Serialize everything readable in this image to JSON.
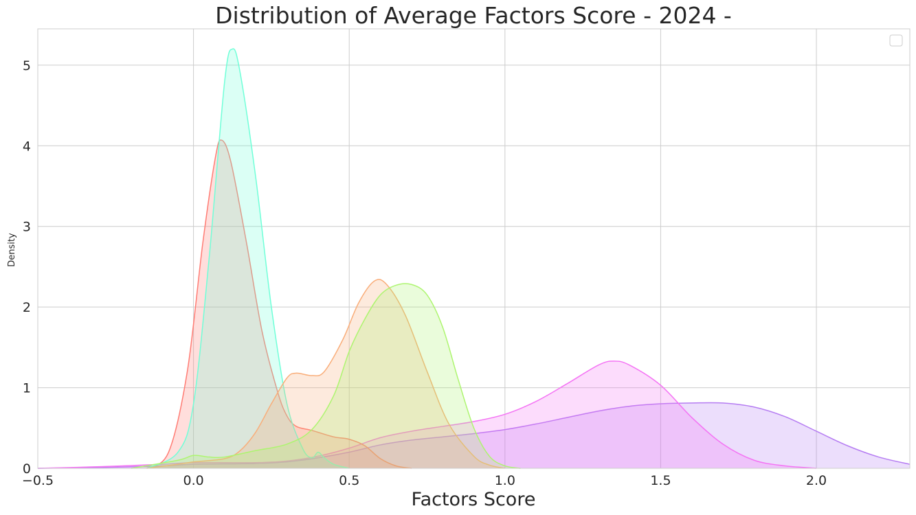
{
  "chart_data": {
    "type": "area",
    "title": "Distribution of Average Factors Score - 2024 -",
    "xlabel": "Factors Score",
    "ylabel": "Density",
    "xlim": [
      -0.5,
      2.3
    ],
    "ylim": [
      0,
      5.45
    ],
    "xticks": [
      -0.5,
      0.0,
      0.5,
      1.0,
      1.5,
      2.0
    ],
    "xtick_labels": [
      "−0.5",
      "0.0",
      "0.5",
      "1.0",
      "1.5",
      "2.0"
    ],
    "yticks": [
      0,
      1,
      2,
      3,
      4,
      5
    ],
    "ytick_labels": [
      "0",
      "1",
      "2",
      "3",
      "4",
      "5"
    ],
    "grid": true,
    "legend": {
      "placement": "top-right",
      "entries": []
    },
    "series": [
      {
        "color": "#b57cf2",
        "points": [
          [
            -0.5,
            0.0
          ],
          [
            -0.3,
            0.01
          ],
          [
            -0.1,
            0.03
          ],
          [
            0.0,
            0.05
          ],
          [
            0.2,
            0.06
          ],
          [
            0.3,
            0.08
          ],
          [
            0.4,
            0.13
          ],
          [
            0.5,
            0.2
          ],
          [
            0.6,
            0.29
          ],
          [
            0.7,
            0.35
          ],
          [
            0.8,
            0.39
          ],
          [
            0.9,
            0.43
          ],
          [
            1.0,
            0.48
          ],
          [
            1.1,
            0.55
          ],
          [
            1.2,
            0.63
          ],
          [
            1.3,
            0.71
          ],
          [
            1.4,
            0.77
          ],
          [
            1.5,
            0.8
          ],
          [
            1.6,
            0.81
          ],
          [
            1.7,
            0.81
          ],
          [
            1.8,
            0.76
          ],
          [
            1.9,
            0.64
          ],
          [
            2.0,
            0.46
          ],
          [
            2.1,
            0.28
          ],
          [
            2.2,
            0.14
          ],
          [
            2.3,
            0.05
          ]
        ]
      },
      {
        "color": "#f472f4",
        "points": [
          [
            -0.5,
            0.0
          ],
          [
            -0.3,
            0.02
          ],
          [
            -0.1,
            0.05
          ],
          [
            0.0,
            0.07
          ],
          [
            0.2,
            0.07
          ],
          [
            0.3,
            0.09
          ],
          [
            0.4,
            0.15
          ],
          [
            0.5,
            0.25
          ],
          [
            0.6,
            0.38
          ],
          [
            0.7,
            0.46
          ],
          [
            0.8,
            0.52
          ],
          [
            0.9,
            0.58
          ],
          [
            1.0,
            0.67
          ],
          [
            1.1,
            0.83
          ],
          [
            1.2,
            1.05
          ],
          [
            1.3,
            1.28
          ],
          [
            1.35,
            1.33
          ],
          [
            1.4,
            1.28
          ],
          [
            1.5,
            1.03
          ],
          [
            1.6,
            0.63
          ],
          [
            1.7,
            0.3
          ],
          [
            1.8,
            0.1
          ],
          [
            1.9,
            0.03
          ],
          [
            2.0,
            0.0
          ]
        ]
      },
      {
        "color": "#ff7b73",
        "points": [
          [
            -0.15,
            0.0
          ],
          [
            -0.08,
            0.2
          ],
          [
            -0.02,
            1.2
          ],
          [
            0.03,
            2.8
          ],
          [
            0.07,
            3.85
          ],
          [
            0.09,
            4.07
          ],
          [
            0.12,
            3.8
          ],
          [
            0.17,
            2.8
          ],
          [
            0.22,
            1.7
          ],
          [
            0.27,
            0.95
          ],
          [
            0.3,
            0.65
          ],
          [
            0.33,
            0.52
          ],
          [
            0.38,
            0.47
          ],
          [
            0.45,
            0.39
          ],
          [
            0.5,
            0.36
          ],
          [
            0.55,
            0.28
          ],
          [
            0.6,
            0.12
          ],
          [
            0.65,
            0.03
          ],
          [
            0.7,
            0.0
          ]
        ]
      },
      {
        "color": "#70ffd8",
        "points": [
          [
            -0.15,
            0.0
          ],
          [
            -0.05,
            0.2
          ],
          [
            0.0,
            0.8
          ],
          [
            0.05,
            2.6
          ],
          [
            0.1,
            4.8
          ],
          [
            0.125,
            5.2
          ],
          [
            0.15,
            4.9
          ],
          [
            0.2,
            3.6
          ],
          [
            0.25,
            2.0
          ],
          [
            0.3,
            0.8
          ],
          [
            0.35,
            0.25
          ],
          [
            0.38,
            0.13
          ],
          [
            0.4,
            0.2
          ],
          [
            0.42,
            0.13
          ],
          [
            0.45,
            0.05
          ],
          [
            0.5,
            0.0
          ]
        ]
      },
      {
        "color": "#f9ad79",
        "points": [
          [
            -0.15,
            0.0
          ],
          [
            -0.05,
            0.05
          ],
          [
            0.0,
            0.08
          ],
          [
            0.1,
            0.12
          ],
          [
            0.15,
            0.22
          ],
          [
            0.2,
            0.45
          ],
          [
            0.25,
            0.8
          ],
          [
            0.3,
            1.12
          ],
          [
            0.33,
            1.18
          ],
          [
            0.38,
            1.15
          ],
          [
            0.42,
            1.2
          ],
          [
            0.48,
            1.6
          ],
          [
            0.53,
            2.05
          ],
          [
            0.58,
            2.32
          ],
          [
            0.62,
            2.28
          ],
          [
            0.68,
            1.9
          ],
          [
            0.75,
            1.2
          ],
          [
            0.82,
            0.55
          ],
          [
            0.9,
            0.15
          ],
          [
            0.95,
            0.04
          ],
          [
            1.0,
            0.0
          ]
        ]
      },
      {
        "color": "#adf56f",
        "points": [
          [
            -0.2,
            0.0
          ],
          [
            -0.05,
            0.1
          ],
          [
            0.0,
            0.16
          ],
          [
            0.05,
            0.14
          ],
          [
            0.1,
            0.14
          ],
          [
            0.2,
            0.22
          ],
          [
            0.3,
            0.3
          ],
          [
            0.38,
            0.48
          ],
          [
            0.45,
            0.9
          ],
          [
            0.5,
            1.45
          ],
          [
            0.55,
            1.85
          ],
          [
            0.6,
            2.15
          ],
          [
            0.65,
            2.27
          ],
          [
            0.7,
            2.28
          ],
          [
            0.75,
            2.15
          ],
          [
            0.8,
            1.75
          ],
          [
            0.85,
            1.1
          ],
          [
            0.9,
            0.5
          ],
          [
            0.95,
            0.15
          ],
          [
            1.0,
            0.03
          ],
          [
            1.05,
            0.0
          ]
        ]
      }
    ]
  }
}
